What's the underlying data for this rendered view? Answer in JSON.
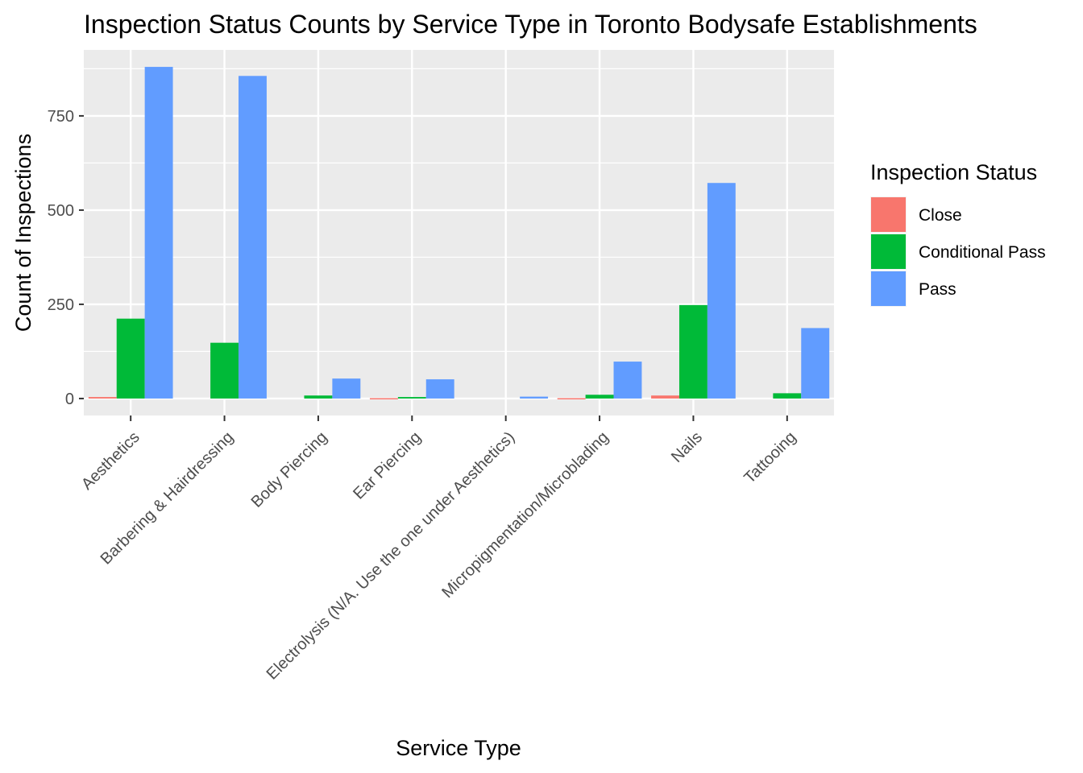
{
  "chart_data": {
    "type": "bar",
    "title": "Inspection Status Counts by Service Type in Toronto Bodysafe Establishments",
    "xlabel": "Service Type",
    "ylabel": "Count of Inspections",
    "ylim": [
      -45,
      925
    ],
    "yticks": [
      0,
      250,
      500,
      750
    ],
    "grid": true,
    "legend_position": "right",
    "legend_title": "Inspection Status",
    "categories": [
      "Aesthetics",
      "Barbering & Hairdressing",
      "Body Piercing",
      "Ear Piercing",
      "Electrolysis   (N/A. Use the one under Aesthetics)",
      "Micropigmentation/Microblading",
      "Nails",
      "Tattooing"
    ],
    "series": [
      {
        "name": "Close",
        "color": "#F8766D",
        "values": [
          4,
          0,
          0,
          1,
          0,
          1,
          8,
          0
        ]
      },
      {
        "name": "Conditional Pass",
        "color": "#00BA38",
        "values": [
          212,
          148,
          8,
          4,
          0,
          10,
          248,
          14
        ]
      },
      {
        "name": "Pass",
        "color": "#619CFF",
        "values": [
          880,
          856,
          53,
          51,
          5,
          98,
          572,
          187
        ]
      }
    ]
  }
}
